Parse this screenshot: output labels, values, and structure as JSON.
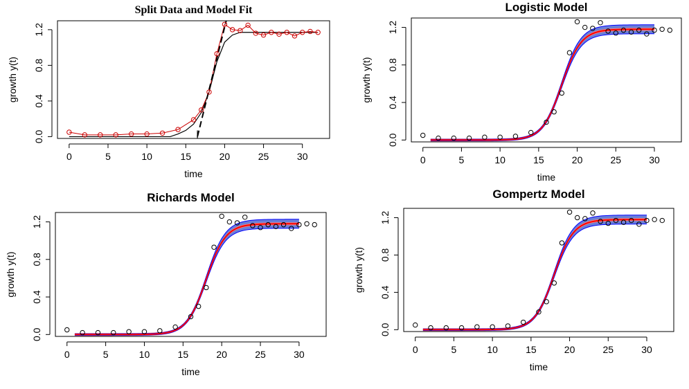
{
  "chart_data": [
    {
      "type": "line",
      "title": "Split Data and Model Fit",
      "title_style": "serif",
      "xlabel": "time",
      "ylabel": "growth y(t)",
      "xlim": [
        -1.5,
        33.5
      ],
      "ylim": [
        -0.02,
        1.3
      ],
      "xticks": [
        "0",
        "5",
        "10",
        "15",
        "20",
        "25",
        "30"
      ],
      "yticks": [
        "0.0",
        "0.4",
        "0.8",
        "1.2"
      ],
      "observed": {
        "x": [
          0,
          2,
          4,
          6,
          8,
          10,
          12,
          14,
          16,
          17,
          18,
          19,
          20,
          21,
          22,
          23,
          24,
          25,
          26,
          27,
          28,
          29,
          30,
          31,
          32
        ],
        "y": [
          0.05,
          0.02,
          0.02,
          0.02,
          0.03,
          0.03,
          0.04,
          0.08,
          0.19,
          0.3,
          0.5,
          0.93,
          1.26,
          1.2,
          1.19,
          1.25,
          1.16,
          1.14,
          1.17,
          1.15,
          1.17,
          1.13,
          1.17,
          1.18,
          1.17
        ],
        "color": "#cc0000"
      },
      "model_fit": {
        "x": [
          0,
          2,
          4,
          6,
          8,
          10,
          12,
          13,
          14,
          15,
          16,
          17,
          18,
          19,
          20,
          21,
          22,
          23,
          24,
          25,
          26,
          27,
          28,
          29,
          30,
          31,
          32
        ],
        "y": [
          0.0,
          0.0,
          0.0,
          0.0,
          0.0,
          0.0,
          0.0,
          0.0,
          0.03,
          0.07,
          0.14,
          0.27,
          0.5,
          0.84,
          1.06,
          1.14,
          1.17,
          1.17,
          1.17,
          1.17,
          1.17,
          1.17,
          1.17,
          1.17,
          1.17,
          1.17,
          1.17
        ],
        "color": "#000000"
      },
      "tangent": {
        "x": [
          16.5,
          20.2
        ],
        "y": [
          0.0,
          1.3
        ],
        "style": "dashed"
      },
      "vline": {
        "x": 16.5,
        "ymax": 0.07
      }
    },
    {
      "type": "line",
      "title": "Logistic Model",
      "title_style": "sans",
      "xlabel": "time",
      "ylabel": "growth y(t)",
      "xlim": [
        -1.5,
        33.5
      ],
      "ylim": [
        -0.02,
        1.3
      ],
      "xticks": [
        "0",
        "5",
        "10",
        "15",
        "20",
        "25",
        "30"
      ],
      "yticks": [
        "0.0",
        "0.4",
        "0.8",
        "1.2"
      ],
      "observed": {
        "x": [
          0,
          2,
          4,
          6,
          8,
          10,
          12,
          14,
          16,
          17,
          18,
          19,
          20,
          21,
          22,
          23,
          24,
          25,
          26,
          27,
          28,
          29,
          30,
          31,
          32
        ],
        "y": [
          0.05,
          0.02,
          0.02,
          0.02,
          0.03,
          0.03,
          0.04,
          0.08,
          0.19,
          0.3,
          0.5,
          0.93,
          1.26,
          1.2,
          1.19,
          1.25,
          1.16,
          1.14,
          1.17,
          1.15,
          1.17,
          1.13,
          1.17,
          1.18,
          1.17
        ]
      },
      "fit": {
        "x_start": 1,
        "x_end": 30,
        "asymptote": 1.18,
        "rate": 0.8,
        "midpoint": 18.0,
        "band": 0.04
      }
    },
    {
      "type": "line",
      "title": "Richards Model",
      "title_style": "sans",
      "xlabel": "time",
      "ylabel": "growth y(t)",
      "xlim": [
        -1.5,
        33.5
      ],
      "ylim": [
        -0.02,
        1.3
      ],
      "xticks": [
        "0",
        "5",
        "10",
        "15",
        "20",
        "25",
        "30"
      ],
      "yticks": [
        "0.0",
        "0.4",
        "0.8",
        "1.2"
      ],
      "observed": {
        "x": [
          0,
          2,
          4,
          6,
          8,
          10,
          12,
          14,
          16,
          17,
          18,
          19,
          20,
          21,
          22,
          23,
          24,
          25,
          26,
          27,
          28,
          29,
          30,
          31,
          32
        ],
        "y": [
          0.05,
          0.02,
          0.02,
          0.02,
          0.03,
          0.03,
          0.04,
          0.08,
          0.19,
          0.3,
          0.5,
          0.93,
          1.26,
          1.2,
          1.19,
          1.25,
          1.16,
          1.14,
          1.17,
          1.15,
          1.17,
          1.13,
          1.17,
          1.18,
          1.17
        ]
      },
      "fit": {
        "x_start": 1,
        "x_end": 30,
        "asymptote": 1.18,
        "rate": 0.8,
        "midpoint": 18.0,
        "band": 0.04
      }
    },
    {
      "type": "line",
      "title": "Gompertz Model",
      "title_style": "sans",
      "xlabel": "time",
      "ylabel": "growth y(t)",
      "xlim": [
        -1.5,
        33.5
      ],
      "ylim": [
        -0.02,
        1.3
      ],
      "xticks": [
        "0",
        "5",
        "10",
        "15",
        "20",
        "25",
        "30"
      ],
      "yticks": [
        "0.0",
        "0.4",
        "0.8",
        "1.2"
      ],
      "observed": {
        "x": [
          0,
          2,
          4,
          6,
          8,
          10,
          12,
          14,
          16,
          17,
          18,
          19,
          20,
          21,
          22,
          23,
          24,
          25,
          26,
          27,
          28,
          29,
          30,
          31,
          32
        ],
        "y": [
          0.05,
          0.02,
          0.02,
          0.02,
          0.03,
          0.03,
          0.04,
          0.08,
          0.19,
          0.3,
          0.5,
          0.93,
          1.26,
          1.2,
          1.19,
          1.25,
          1.16,
          1.14,
          1.17,
          1.15,
          1.17,
          1.13,
          1.17,
          1.18,
          1.17
        ]
      },
      "fit": {
        "x_start": 1,
        "x_end": 30,
        "asymptote": 1.18,
        "rate": 0.8,
        "midpoint": 18.0,
        "band": 0.04
      }
    }
  ],
  "colors": {
    "fit_line": "#ff0000",
    "band_fill": "#f08080",
    "band_edge": "#0000ff",
    "band_shade": "#6a7fd8"
  }
}
